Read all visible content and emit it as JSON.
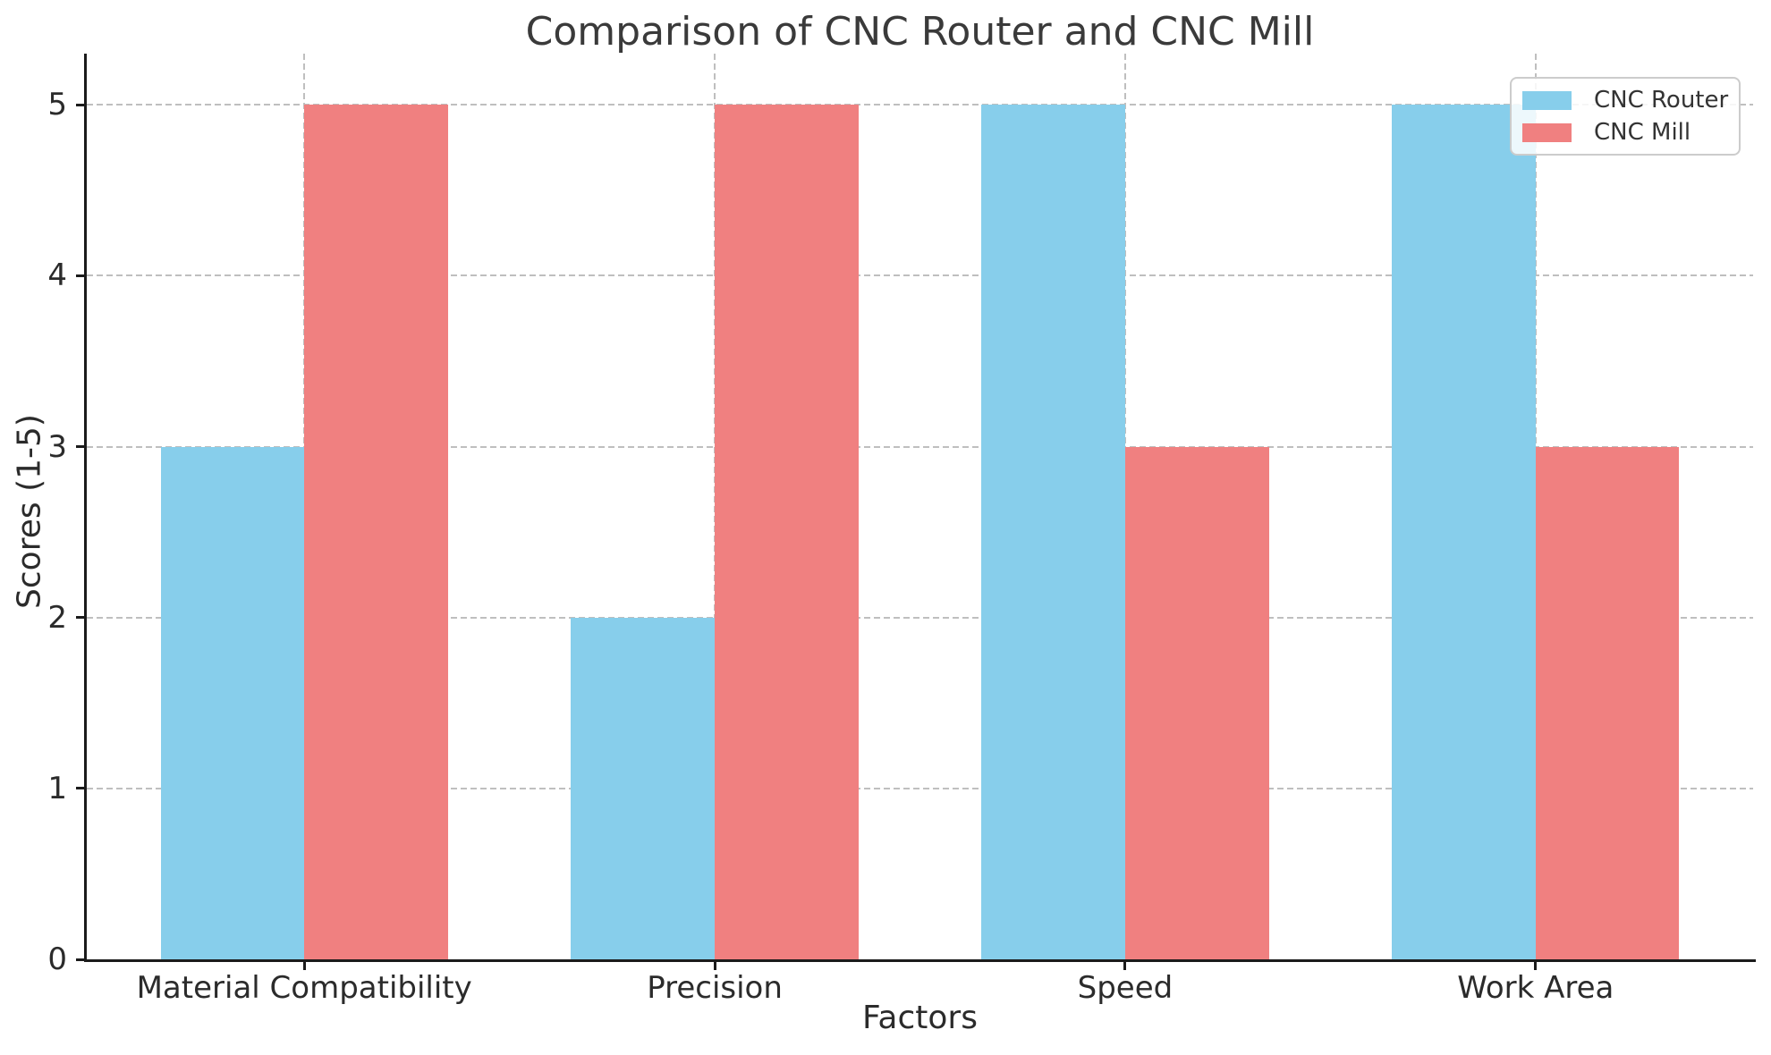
{
  "chart_data": {
    "type": "bar",
    "title": "Comparison of CNC Router and CNC Mill",
    "xlabel": "Factors",
    "ylabel": "Scores (1-5)",
    "categories": [
      "Material Compatibility",
      "Precision",
      "Speed",
      "Work Area"
    ],
    "series": [
      {
        "name": "CNC Router",
        "color": "#87CEEB",
        "values": [
          3,
          2,
          5,
          5
        ]
      },
      {
        "name": "CNC Mill",
        "color": "#F08080",
        "values": [
          5,
          5,
          3,
          3
        ]
      }
    ],
    "yticks": [
      0,
      1,
      2,
      3,
      4,
      5
    ],
    "ylim": [
      0,
      5.3
    ],
    "xlim": [
      -0.53,
      3.53
    ],
    "bar_width": 0.35,
    "grid": {
      "horizontal": true,
      "vertical": true,
      "style": "dashed"
    },
    "legend": {
      "position": "upper right",
      "entries": [
        "CNC Router",
        "CNC Mill"
      ]
    },
    "colors": {
      "background": "#ffffff",
      "grid": "#bfbfbf",
      "spine": "#1b1b1b",
      "text": "#333333"
    }
  }
}
